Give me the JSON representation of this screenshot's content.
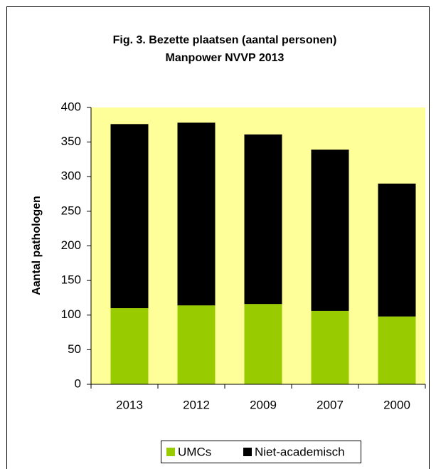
{
  "chart_data": {
    "type": "stacked_bar",
    "title": "Fig. 3. Bezette plaatsen (aantal personen)",
    "subtitle": "Manpower NVVP 2013",
    "y_label": "Aantal pathologen",
    "categories": [
      "2013",
      "2012",
      "2009",
      "2007",
      "2000"
    ],
    "series": [
      {
        "name": "UMCs",
        "color": "#99cc00",
        "values": [
          110,
          114,
          116,
          106,
          98
        ]
      },
      {
        "name": "Niet-academisch",
        "color": "#000000",
        "values": [
          266,
          264,
          245,
          233,
          192
        ]
      }
    ],
    "ylim": [
      0,
      400
    ],
    "yticks": [
      0,
      50,
      100,
      150,
      200,
      250,
      300,
      350,
      400
    ],
    "plot_background": "#ffff99",
    "legend": "bottom"
  }
}
